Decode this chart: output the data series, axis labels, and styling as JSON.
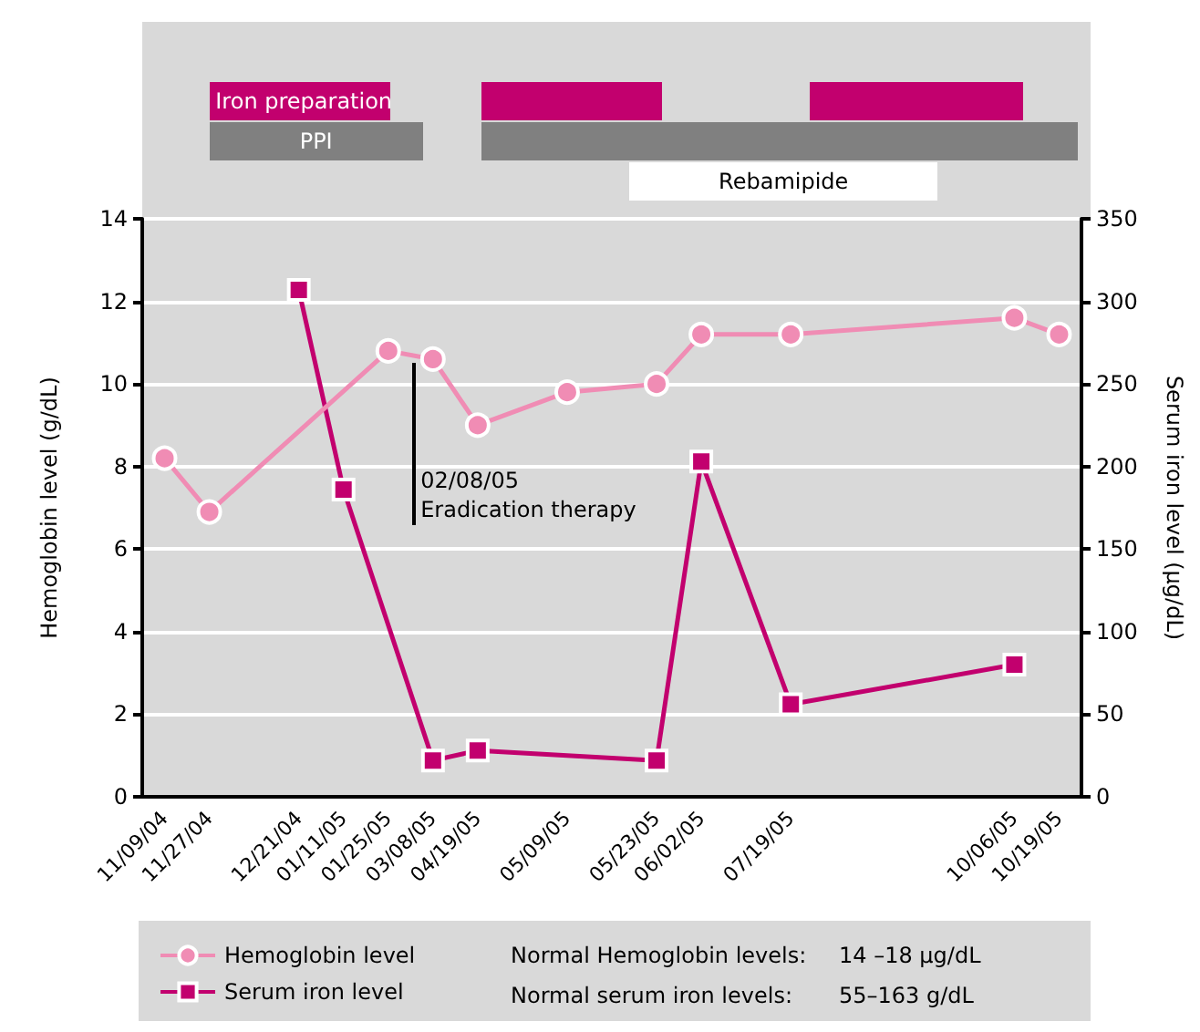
{
  "chart_data": {
    "type": "line",
    "xlabel": null,
    "ylabel": "Hemoglobin level (g/dL)",
    "y2label": "Serum iron level (µg/dL)",
    "categories": [
      "11/09/04",
      "11/27/04",
      null,
      "12/21/04",
      "01/11/05",
      "01/25/05",
      "03/08/05",
      "04/19/05",
      null,
      "05/09/05",
      null,
      "05/23/05",
      "06/02/05",
      null,
      "07/19/05",
      null,
      null,
      null,
      null,
      "10/06/05",
      "10/19/05"
    ],
    "series": [
      {
        "name": "Hemoglobin level",
        "color": "#f08cb4",
        "marker": "circle",
        "values": [
          8.2,
          6.9,
          null,
          null,
          null,
          10.8,
          10.6,
          9.0,
          null,
          9.8,
          null,
          10.0,
          11.2,
          null,
          11.2,
          null,
          null,
          null,
          null,
          11.6,
          11.2
        ]
      },
      {
        "name": "Serum iron level",
        "color": "#c2006e",
        "marker": "square",
        "axis": "y2",
        "values": [
          null,
          null,
          null,
          307,
          186,
          null,
          22,
          28,
          null,
          null,
          null,
          22,
          203,
          null,
          56,
          null,
          null,
          null,
          null,
          80,
          null
        ]
      }
    ],
    "ylim": [
      0,
      14
    ],
    "yticks": [
      0,
      2,
      4,
      6,
      8,
      10,
      12,
      14
    ],
    "y2lim": [
      0,
      350
    ],
    "y2ticks": [
      0,
      50,
      100,
      150,
      200,
      250,
      300,
      350
    ],
    "grid": "y",
    "legend": "bottom",
    "annotations": [
      "02/08/05\nEradication therapy",
      "Normal Hemoglobin levels:",
      "14 –18 μg/dL",
      "Normal serum iron levels:",
      "55–163 g/dL",
      "Iron preparation",
      "PPI",
      "Rebamipide"
    ]
  }
}
